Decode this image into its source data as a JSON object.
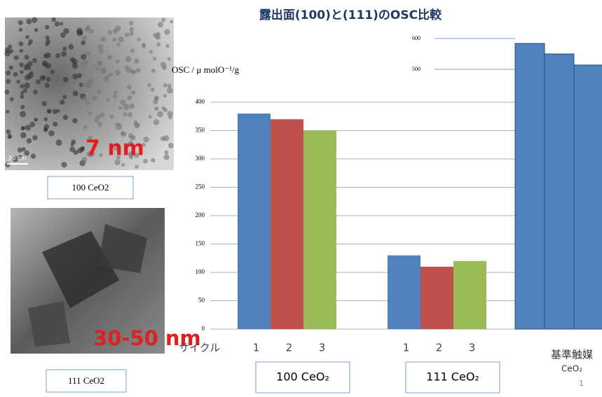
{
  "title": "露出面(100)と(111)のOSC比較",
  "images": [
    {
      "scale_label": "7 nm",
      "scale_bar": "20 nm",
      "caption": "100 CeO2"
    },
    {
      "scale_label": "30-50 nm",
      "caption": "111 CeO2"
    }
  ],
  "chart_data": [
    {
      "type": "bar",
      "y_label": "OSC / μ molO⁻¹/g",
      "x_label": "サイクル",
      "categories": [
        "100 CeO₂",
        "111 CeO₂"
      ],
      "series": [
        {
          "name": "1",
          "color": "#4f81bd",
          "values": [
            380,
            130
          ]
        },
        {
          "name": "2",
          "color": "#c0504d",
          "values": [
            370,
            110
          ]
        },
        {
          "name": "3",
          "color": "#9bbb59",
          "values": [
            350,
            120
          ]
        }
      ],
      "ylim": [
        0,
        400
      ],
      "yticks": [
        0,
        50,
        100,
        150,
        200,
        250,
        300,
        350,
        400
      ],
      "grid": true
    },
    {
      "type": "bar",
      "label_lines": [
        "基準触媒",
        "CeO₂"
      ],
      "color": "#4f81bd",
      "values": [
        584,
        550,
        514
      ],
      "ylim": [
        500,
        600
      ],
      "yticks": [
        500,
        600
      ],
      "grid": true
    }
  ],
  "page_number": "1"
}
